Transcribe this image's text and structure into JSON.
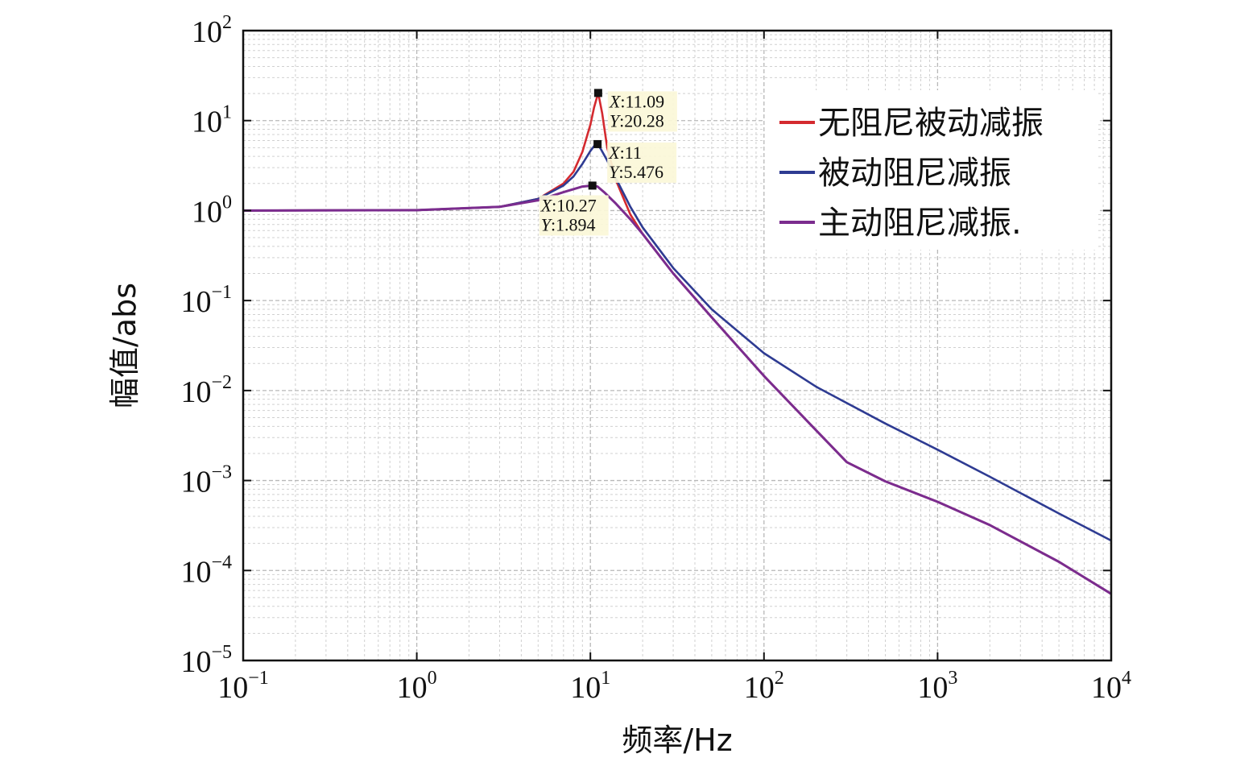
{
  "chart_data": {
    "type": "line",
    "title": "",
    "xlabel": "频率/Hz",
    "ylabel": "幅值/abs",
    "xscale": "log",
    "yscale": "log",
    "xlim": [
      0.1,
      10000
    ],
    "ylim": [
      1e-05,
      100
    ],
    "grid": true,
    "legend_position": "top-right",
    "x_ticks": [
      {
        "base": "10",
        "exp": "−1",
        "value": 0.1
      },
      {
        "base": "10",
        "exp": "0",
        "value": 1
      },
      {
        "base": "10",
        "exp": "1",
        "value": 10
      },
      {
        "base": "10",
        "exp": "2",
        "value": 100
      },
      {
        "base": "10",
        "exp": "3",
        "value": 1000
      },
      {
        "base": "10",
        "exp": "4",
        "value": 10000
      }
    ],
    "y_ticks": [
      {
        "base": "10",
        "exp": "2",
        "value": 100
      },
      {
        "base": "10",
        "exp": "1",
        "value": 10
      },
      {
        "base": "10",
        "exp": "0",
        "value": 1
      },
      {
        "base": "10",
        "exp": "−1",
        "value": 0.1
      },
      {
        "base": "10",
        "exp": "−2",
        "value": 0.01
      },
      {
        "base": "10",
        "exp": "−3",
        "value": 0.001
      },
      {
        "base": "10",
        "exp": "−4",
        "value": 0.0001
      },
      {
        "base": "10",
        "exp": "−5",
        "value": 1e-05
      }
    ],
    "series": [
      {
        "name": "无阻尼被动减振",
        "color": "#d42a2f",
        "x": [
          0.1,
          1,
          3,
          5,
          7,
          8,
          9,
          10,
          10.5,
          11.09,
          11.7,
          12.5,
          14,
          17,
          20,
          30,
          50,
          100,
          200,
          300,
          500,
          1000,
          2000,
          5000,
          10000
        ],
        "y": [
          1,
          1.01,
          1.1,
          1.35,
          2.0,
          2.7,
          4.5,
          9.0,
          14.0,
          20.28,
          12.0,
          5.0,
          2.2,
          0.9,
          0.55,
          0.2,
          0.065,
          0.0145,
          0.0036,
          0.0016,
          0.00098,
          0.00058,
          0.00032,
          0.000125,
          5.5e-05
        ]
      },
      {
        "name": "被动阻尼减振",
        "color": "#2e3b92",
        "x": [
          0.1,
          1,
          3,
          5,
          7,
          8,
          9,
          10,
          10.5,
          11,
          11.5,
          12.5,
          14,
          17,
          20,
          30,
          50,
          100,
          200,
          500,
          1000,
          2000,
          5000,
          10000
        ],
        "y": [
          1,
          1.01,
          1.1,
          1.35,
          1.9,
          2.4,
          3.3,
          4.6,
          5.2,
          5.476,
          4.8,
          3.6,
          2.3,
          1.1,
          0.65,
          0.23,
          0.08,
          0.026,
          0.011,
          0.0043,
          0.0022,
          0.0011,
          0.00043,
          0.000215
        ]
      },
      {
        "name": "主动阻尼减振.",
        "color": "#7b2c8e",
        "x": [
          0.1,
          1,
          3,
          5,
          7,
          9,
          10.27,
          11,
          12,
          14,
          17,
          20,
          30,
          50,
          100,
          200,
          300,
          500,
          1000,
          2000,
          5000,
          10000
        ],
        "y": [
          1,
          1.01,
          1.1,
          1.3,
          1.6,
          1.85,
          1.894,
          1.85,
          1.6,
          1.2,
          0.8,
          0.55,
          0.2,
          0.065,
          0.0145,
          0.0036,
          0.0016,
          0.00098,
          0.00058,
          0.00032,
          0.000125,
          5.5e-05
        ]
      }
    ],
    "annotations": [
      {
        "series": 0,
        "x": 11.09,
        "y": 20.28,
        "x_label": "X",
        "x_text": ":11.09",
        "y_label": "Y",
        "y_text": ":20.28"
      },
      {
        "series": 1,
        "x": 11,
        "y": 5.476,
        "x_label": "X",
        "x_text": ":11",
        "y_label": "Y",
        "y_text": ":5.476"
      },
      {
        "series": 2,
        "x": 10.27,
        "y": 1.894,
        "x_label": "X",
        "x_text": ":10.27",
        "y_label": "Y",
        "y_text": ":1.894"
      }
    ]
  }
}
